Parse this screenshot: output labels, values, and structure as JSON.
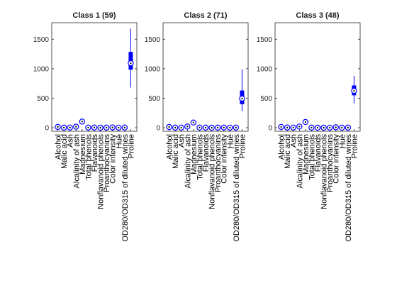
{
  "chart_data": [
    {
      "type": "box",
      "title": "Class 1 (59)",
      "categories": [
        "Alcohol",
        "Malic acid",
        "Ash",
        "Alcalinity of ash",
        "Magnesium",
        "Total phenols",
        "Flavanoids",
        "Nonflavanoid phenols",
        "Proanthocyanins",
        "Color intensity",
        "Hue",
        "OD280/OD315 of diluted wines",
        "Proline"
      ],
      "ylim": [
        -60,
        1780
      ],
      "yticks": [
        0,
        500,
        1000,
        1500
      ],
      "boxes": [
        {
          "median": 13.8,
          "q1": 13.4,
          "q3": 14.2,
          "whisker_low": 12.8,
          "whisker_high": 14.8
        },
        {
          "median": 1.9,
          "q1": 1.6,
          "q3": 2.3,
          "whisker_low": 1.3,
          "whisker_high": 4.0
        },
        {
          "median": 2.4,
          "q1": 2.3,
          "q3": 2.6,
          "whisker_low": 2.0,
          "whisker_high": 3.2
        },
        {
          "median": 17,
          "q1": 16,
          "q3": 18.5,
          "whisker_low": 11,
          "whisker_high": 25
        },
        {
          "median": 104,
          "q1": 98,
          "q3": 114,
          "whisker_low": 89,
          "whisker_high": 132
        },
        {
          "median": 2.8,
          "q1": 2.6,
          "q3": 3.0,
          "whisker_low": 2.2,
          "whisker_high": 3.9
        },
        {
          "median": 3.0,
          "q1": 2.7,
          "q3": 3.2,
          "whisker_low": 2.2,
          "whisker_high": 3.9
        },
        {
          "median": 0.29,
          "q1": 0.26,
          "q3": 0.32,
          "whisker_low": 0.17,
          "whisker_high": 0.5
        },
        {
          "median": 1.9,
          "q1": 1.6,
          "q3": 2.1,
          "whisker_low": 1.2,
          "whisker_high": 3.0
        },
        {
          "median": 5.4,
          "q1": 4.6,
          "q3": 6.2,
          "whisker_low": 3.5,
          "whisker_high": 8.9
        },
        {
          "median": 1.07,
          "q1": 1.0,
          "q3": 1.12,
          "whisker_low": 0.82,
          "whisker_high": 1.28
        },
        {
          "median": 3.1,
          "q1": 2.9,
          "q3": 3.3,
          "whisker_low": 2.5,
          "whisker_high": 4.0
        },
        {
          "median": 1095,
          "q1": 990,
          "q3": 1280,
          "whisker_low": 680,
          "whisker_high": 1680
        }
      ]
    },
    {
      "type": "box",
      "title": "Class 2 (71)",
      "categories": [
        "Alcohol",
        "Malic acid",
        "Ash",
        "Alcalinity of ash",
        "Magnesium",
        "Total phenols",
        "Flavanoids",
        "Nonflavanoid phenols",
        "Proanthocyanins",
        "Color intensity",
        "Hue",
        "OD280/OD315 of diluted wines",
        "Proline"
      ],
      "ylim": [
        -60,
        1780
      ],
      "yticks": [
        0,
        500,
        1000,
        1500
      ],
      "boxes": [
        {
          "median": 12.3,
          "q1": 12.0,
          "q3": 12.5,
          "whisker_low": 11.0,
          "whisker_high": 13.3
        },
        {
          "median": 1.6,
          "q1": 1.3,
          "q3": 2.1,
          "whisker_low": 0.7,
          "whisker_high": 3.6
        },
        {
          "median": 2.2,
          "q1": 2.0,
          "q3": 2.4,
          "whisker_low": 1.7,
          "whisker_high": 2.9
        },
        {
          "median": 20,
          "q1": 18,
          "q3": 22,
          "whisker_low": 14,
          "whisker_high": 28
        },
        {
          "median": 88,
          "q1": 85,
          "q3": 99,
          "whisker_low": 70,
          "whisker_high": 122
        },
        {
          "median": 2.2,
          "q1": 1.9,
          "q3": 2.6,
          "whisker_low": 1.1,
          "whisker_high": 3.5
        },
        {
          "median": 2.0,
          "q1": 1.6,
          "q3": 2.4,
          "whisker_low": 0.6,
          "whisker_high": 3.5
        },
        {
          "median": 0.37,
          "q1": 0.27,
          "q3": 0.43,
          "whisker_low": 0.13,
          "whisker_high": 0.66
        },
        {
          "median": 1.6,
          "q1": 1.4,
          "q3": 1.9,
          "whisker_low": 0.6,
          "whisker_high": 2.7
        },
        {
          "median": 2.9,
          "q1": 2.6,
          "q3": 3.3,
          "whisker_low": 1.3,
          "whisker_high": 4.5
        },
        {
          "median": 1.04,
          "q1": 0.93,
          "q3": 1.2,
          "whisker_low": 0.7,
          "whisker_high": 1.45
        },
        {
          "median": 2.8,
          "q1": 2.4,
          "q3": 3.2,
          "whisker_low": 1.6,
          "whisker_high": 3.7
        },
        {
          "median": 495,
          "q1": 405,
          "q3": 625,
          "whisker_low": 280,
          "whisker_high": 990
        }
      ]
    },
    {
      "type": "box",
      "title": "Class 3 (48)",
      "categories": [
        "Alcohol",
        "Malic acid",
        "Ash",
        "Alcalinity of ash",
        "Magnesium",
        "Total phenols",
        "Flavanoids",
        "Nonflavanoid phenols",
        "Proanthocyanins",
        "Color intensity",
        "Hue",
        "OD280/OD315 of diluted wines",
        "Proline"
      ],
      "ylim": [
        -60,
        1780
      ],
      "yticks": [
        0,
        500,
        1000,
        1500
      ],
      "boxes": [
        {
          "median": 13.2,
          "q1": 12.8,
          "q3": 13.6,
          "whisker_low": 12.2,
          "whisker_high": 14.3
        },
        {
          "median": 3.3,
          "q1": 2.6,
          "q3": 4.0,
          "whisker_low": 1.2,
          "whisker_high": 5.7
        },
        {
          "median": 2.4,
          "q1": 2.3,
          "q3": 2.6,
          "whisker_low": 2.1,
          "whisker_high": 2.9
        },
        {
          "median": 21,
          "q1": 20,
          "q3": 23,
          "whisker_low": 17,
          "whisker_high": 27
        },
        {
          "median": 97,
          "q1": 89,
          "q3": 106,
          "whisker_low": 80,
          "whisker_high": 123
        },
        {
          "median": 1.6,
          "q1": 1.5,
          "q3": 1.8,
          "whisker_low": 1.0,
          "whisker_high": 2.8
        },
        {
          "median": 0.7,
          "q1": 0.6,
          "q3": 0.9,
          "whisker_low": 0.34,
          "whisker_high": 1.6
        },
        {
          "median": 0.47,
          "q1": 0.4,
          "q3": 0.53,
          "whisker_low": 0.17,
          "whisker_high": 0.63
        },
        {
          "median": 1.1,
          "q1": 0.9,
          "q3": 1.4,
          "whisker_low": 0.55,
          "whisker_high": 2.0
        },
        {
          "median": 7.5,
          "q1": 5.6,
          "q3": 9.2,
          "whisker_low": 3.8,
          "whisker_high": 13
        },
        {
          "median": 0.67,
          "q1": 0.6,
          "q3": 0.75,
          "whisker_low": 0.48,
          "whisker_high": 0.96
        },
        {
          "median": 1.66,
          "q1": 1.5,
          "q3": 1.8,
          "whisker_low": 1.27,
          "whisker_high": 2.47
        },
        {
          "median": 625,
          "q1": 555,
          "q3": 710,
          "whisker_low": 415,
          "whisker_high": 880
        }
      ]
    }
  ]
}
